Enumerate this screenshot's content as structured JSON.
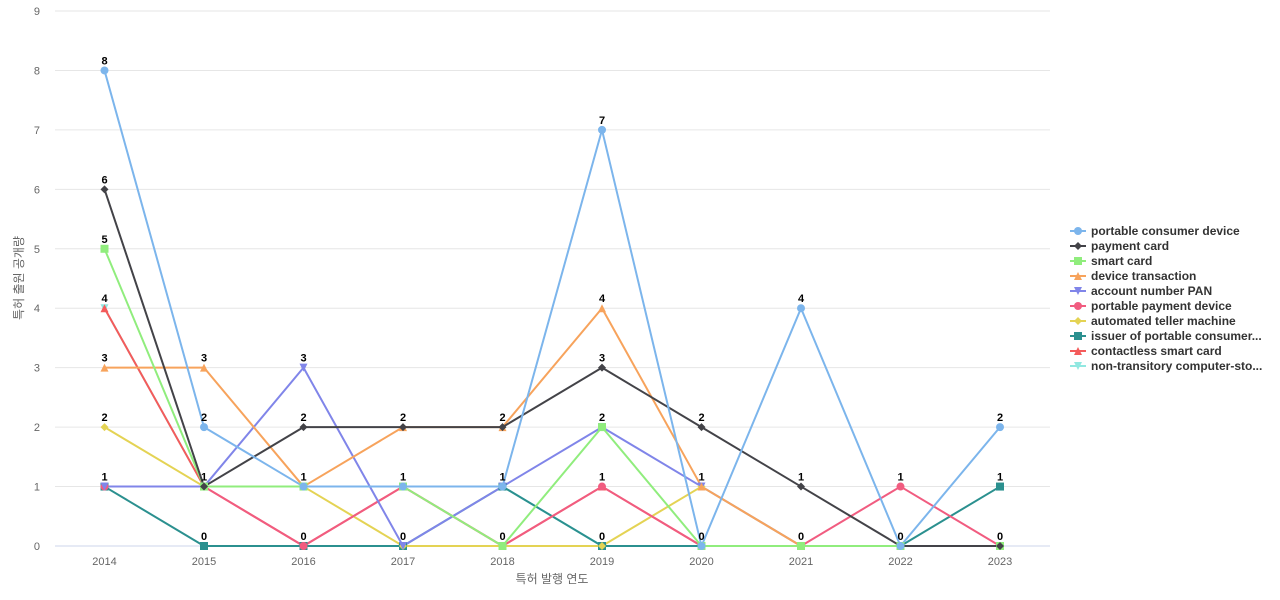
{
  "chart_data": {
    "type": "line",
    "xlabel": "특허 발행 연도",
    "ylabel": "특허 출원 공개량",
    "ylim": [
      0,
      9
    ],
    "yticks": [
      0,
      1,
      2,
      3,
      4,
      5,
      6,
      7,
      8,
      9
    ],
    "categories": [
      "2014",
      "2015",
      "2016",
      "2017",
      "2018",
      "2019",
      "2020",
      "2021",
      "2022",
      "2023"
    ],
    "grid": true,
    "legend_position": "right",
    "series": [
      {
        "name": "portable consumer device",
        "color": "#7cb5ec",
        "marker": "circle",
        "values": [
          8,
          2,
          1,
          1,
          1,
          7,
          0,
          4,
          0,
          2
        ]
      },
      {
        "name": "payment card",
        "color": "#434348",
        "marker": "diamond",
        "values": [
          6,
          1,
          2,
          2,
          2,
          3,
          2,
          1,
          0,
          0
        ]
      },
      {
        "name": "smart card",
        "color": "#90ed7d",
        "marker": "square",
        "values": [
          5,
          1,
          1,
          1,
          0,
          2,
          0,
          0,
          0,
          0
        ]
      },
      {
        "name": "device transaction",
        "color": "#f7a35c",
        "marker": "triangle",
        "values": [
          3,
          3,
          1,
          2,
          2,
          4,
          1,
          0,
          0,
          0
        ]
      },
      {
        "name": "account number PAN",
        "color": "#8085e9",
        "marker": "triangle-down",
        "values": [
          1,
          1,
          3,
          0,
          1,
          2,
          1,
          0,
          0,
          0
        ]
      },
      {
        "name": "portable payment device",
        "color": "#f15c80",
        "marker": "circle",
        "values": [
          1,
          1,
          0,
          1,
          0,
          1,
          0,
          0,
          1,
          0
        ]
      },
      {
        "name": "automated teller machine",
        "color": "#e4d354",
        "marker": "diamond",
        "values": [
          2,
          1,
          1,
          0,
          0,
          0,
          1,
          0,
          0,
          0
        ]
      },
      {
        "name": "issuer of portable consumer...",
        "color": "#2b908f",
        "marker": "square",
        "values": [
          1,
          0,
          0,
          0,
          1,
          0,
          0,
          0,
          0,
          1
        ]
      },
      {
        "name": "contactless smart card",
        "color": "#f45b5b",
        "marker": "triangle",
        "values": [
          4,
          1,
          0,
          1,
          0,
          1,
          0,
          0,
          0,
          0
        ]
      },
      {
        "name": "non-transitory computer-sto...",
        "color": "#91e8e1",
        "marker": "triangle-down",
        "values": [
          4,
          1,
          1,
          1,
          1,
          0,
          0,
          0,
          0,
          0
        ]
      }
    ],
    "data_labels": [
      {
        "category": "2014",
        "value": 8,
        "label": "8"
      },
      {
        "category": "2014",
        "value": 6,
        "label": "6"
      },
      {
        "category": "2014",
        "value": 5,
        "label": "5"
      },
      {
        "category": "2014",
        "value": 4,
        "label": "4"
      },
      {
        "category": "2014",
        "value": 3,
        "label": "3"
      },
      {
        "category": "2014",
        "value": 2,
        "label": "2"
      },
      {
        "category": "2014",
        "value": 1,
        "label": "1"
      },
      {
        "category": "2015",
        "value": 3,
        "label": "3"
      },
      {
        "category": "2015",
        "value": 2,
        "label": "2"
      },
      {
        "category": "2015",
        "value": 1,
        "label": "1"
      },
      {
        "category": "2015",
        "value": 0,
        "label": "0"
      },
      {
        "category": "2016",
        "value": 3,
        "label": "3"
      },
      {
        "category": "2016",
        "value": 2,
        "label": "2"
      },
      {
        "category": "2016",
        "value": 1,
        "label": "1"
      },
      {
        "category": "2016",
        "value": 0,
        "label": "0"
      },
      {
        "category": "2017",
        "value": 2,
        "label": "2"
      },
      {
        "category": "2017",
        "value": 1,
        "label": "1"
      },
      {
        "category": "2017",
        "value": 0,
        "label": "0"
      },
      {
        "category": "2018",
        "value": 2,
        "label": "2"
      },
      {
        "category": "2018",
        "value": 1,
        "label": "1"
      },
      {
        "category": "2018",
        "value": 0,
        "label": "0"
      },
      {
        "category": "2019",
        "value": 7,
        "label": "7"
      },
      {
        "category": "2019",
        "value": 4,
        "label": "4"
      },
      {
        "category": "2019",
        "value": 3,
        "label": "3"
      },
      {
        "category": "2019",
        "value": 2,
        "label": "2"
      },
      {
        "category": "2019",
        "value": 1,
        "label": "1"
      },
      {
        "category": "2019",
        "value": 0,
        "label": "0"
      },
      {
        "category": "2020",
        "value": 2,
        "label": "2"
      },
      {
        "category": "2020",
        "value": 1,
        "label": "1"
      },
      {
        "category": "2020",
        "value": 0,
        "label": "0"
      },
      {
        "category": "2021",
        "value": 4,
        "label": "4"
      },
      {
        "category": "2021",
        "value": 1,
        "label": "1"
      },
      {
        "category": "2021",
        "value": 0,
        "label": "0"
      },
      {
        "category": "2022",
        "value": 1,
        "label": "1"
      },
      {
        "category": "2022",
        "value": 0,
        "label": "0"
      },
      {
        "category": "2023",
        "value": 2,
        "label": "2"
      },
      {
        "category": "2023",
        "value": 1,
        "label": "1"
      },
      {
        "category": "2023",
        "value": 0,
        "label": "0"
      }
    ]
  }
}
